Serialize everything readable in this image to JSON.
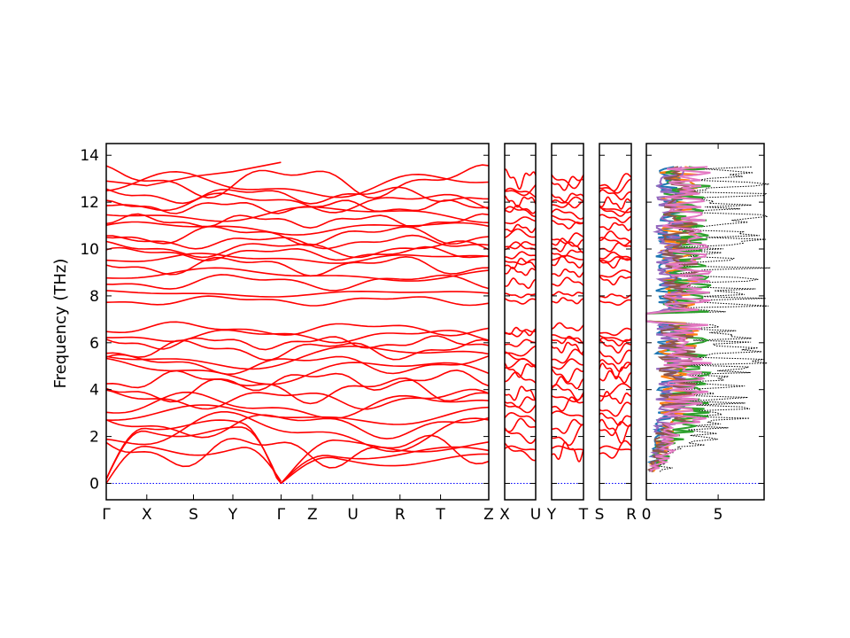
{
  "chart_data": {
    "type": "line",
    "title": "",
    "ylabel": "Frequency (THz)",
    "ylim": [
      -0.7,
      14.5
    ],
    "yticks": [
      0,
      2,
      4,
      6,
      8,
      10,
      12,
      14
    ],
    "band_color": "#ff0000",
    "zero_line_color": "#0000ff",
    "panels": [
      {
        "id": "main",
        "xtick_labels": [
          "Γ",
          "X",
          "S",
          "Y",
          "Γ",
          "Z",
          "U",
          "R",
          "T",
          "Z"
        ],
        "xtick_positions": [
          0,
          0.106,
          0.228,
          0.331,
          0.457,
          0.539,
          0.645,
          0.768,
          0.874,
          1.0
        ],
        "optical_bands": [
          {
            "start": 7.8,
            "amp": 0.15
          },
          {
            "start": 8.1,
            "amp": 0.1
          },
          {
            "start": 8.6,
            "amp": 0.25
          },
          {
            "start": 8.9,
            "amp": 0.2
          },
          {
            "start": 9.3,
            "amp": 0.3
          },
          {
            "start": 9.6,
            "amp": 0.15
          },
          {
            "start": 9.8,
            "amp": 0.2
          },
          {
            "start": 10.0,
            "amp": 0.25
          },
          {
            "start": 10.3,
            "amp": 0.2
          },
          {
            "start": 10.6,
            "amp": 0.3
          },
          {
            "start": 10.9,
            "amp": 0.2
          },
          {
            "start": 11.2,
            "amp": 0.2
          },
          {
            "start": 11.5,
            "amp": 0.25
          },
          {
            "start": 11.8,
            "amp": 0.2
          },
          {
            "start": 12.0,
            "amp": 0.3
          },
          {
            "start": 12.3,
            "amp": 0.25
          },
          {
            "start": 12.7,
            "amp": 0.4
          },
          {
            "start": 12.9,
            "amp": 0.5
          }
        ],
        "lower_bands": [
          {
            "start": 1.4,
            "amp": 0.5
          },
          {
            "start": 2.2,
            "amp": 0.6
          },
          {
            "start": 2.5,
            "amp": 0.4
          },
          {
            "start": 2.9,
            "amp": 0.3
          },
          {
            "start": 3.3,
            "amp": 0.4
          },
          {
            "start": 3.6,
            "amp": 0.3
          },
          {
            "start": 4.0,
            "amp": 0.4
          },
          {
            "start": 4.4,
            "amp": 0.3
          },
          {
            "start": 4.8,
            "amp": 0.4
          },
          {
            "start": 5.1,
            "amp": 0.3
          },
          {
            "start": 5.4,
            "amp": 0.4
          },
          {
            "start": 5.7,
            "amp": 0.3
          },
          {
            "start": 6.0,
            "amp": 0.2
          },
          {
            "start": 6.3,
            "amp": 0.2
          },
          {
            "start": 6.6,
            "amp": 0.2
          }
        ],
        "top_band": [
          12.9,
          12.7,
          13.1,
          13.3,
          13.7
        ]
      },
      {
        "id": "x-u",
        "xtick_labels": [
          "X",
          "U"
        ],
        "xtick_positions": [
          0,
          1
        ]
      },
      {
        "id": "y-t",
        "xtick_labels": [
          "Y",
          "T"
        ],
        "xtick_positions": [
          0,
          1
        ]
      },
      {
        "id": "s-r",
        "xtick_labels": [
          "S",
          "R"
        ],
        "xtick_positions": [
          0,
          1
        ]
      }
    ],
    "dos_panel": {
      "xlim": [
        0,
        8.2
      ],
      "xticks": [
        0,
        5
      ],
      "xtick_labels": [
        "0",
        "5"
      ],
      "total_color": "#000000",
      "series_colors": [
        "#1f77b4",
        "#ff7f0e",
        "#2ca02c",
        "#9467bd",
        "#8c564b",
        "#e377c2"
      ]
    }
  }
}
